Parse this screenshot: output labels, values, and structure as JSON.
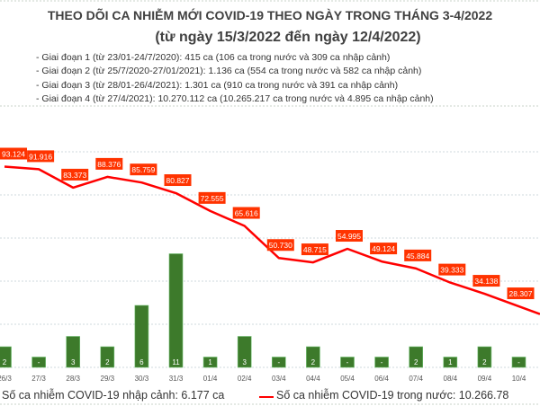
{
  "chart_data": {
    "type": "bar+line",
    "title": "THEO DÕI CA NHIỄM MỚI COVID-19 THEO NGÀY TRONG THÁNG 3-4/2022",
    "subtitle": "(từ ngày 15/3/2022 đến ngày 12/4/2022)",
    "notes": [
      "- Giai đoạn 1 (từ 23/01-24/7/2020): 415 ca (106 ca trong nước và 309 ca nhập cảnh)",
      "- Giai đoạn 2 (từ 25/7/2020-27/01/2021): 1.136 ca (554 ca trong nước và 582 ca nhập cảnh)",
      "- Giai đoạn 3 (từ 28/01-26/4/2021): 1.301 ca (910 ca trong nước và 391 ca nhập cảnh)",
      "- Giai đoạn 4 (từ 27/4/2021): 10.270.112 ca (10.265.217 ca trong nước và 4.895 ca nhập cảnh)"
    ],
    "categories": [
      "26/3",
      "27/3",
      "28/3",
      "29/3",
      "30/3",
      "31/3",
      "01/4",
      "02/4",
      "03/4",
      "04/4",
      "05/4",
      "06/4",
      "07/4",
      "08/4",
      "09/4",
      "10/4"
    ],
    "series": [
      {
        "name": "Số ca nhiễm COVID-19 nhập cảnh: 6.177 ca",
        "type": "bar",
        "color": "#3d7a2b",
        "values": [
          2,
          0,
          3,
          2,
          6,
          11,
          1,
          3,
          0,
          2,
          0,
          0,
          2,
          1,
          2,
          0
        ],
        "labels": [
          "2",
          "-",
          "3",
          "2",
          "6",
          "11",
          "1",
          "3",
          "-",
          "2",
          "-",
          "-",
          "2",
          "1",
          "2",
          "-"
        ]
      },
      {
        "name": "Số ca nhiễm COVID-19 trong nước: 10.266.78",
        "type": "line",
        "color": "#ff0000",
        "values": [
          93124,
          91916,
          83373,
          88376,
          85759,
          80827,
          72555,
          65616,
          50730,
          48715,
          54995,
          49124,
          45884,
          39333,
          34138,
          28307
        ],
        "labels": [
          "93.124",
          "91.916",
          "83.373",
          "88.376",
          "85.759",
          "80.827",
          "72.555",
          "65.616",
          "50.730",
          "48.715",
          "54.995",
          "49.124",
          "45.884",
          "39.333",
          "34.138",
          "28.307"
        ]
      }
    ],
    "line_ylim": [
      0,
      100000
    ],
    "grid": true,
    "legend_placement": "bottom",
    "label_box_color": "#ff3300"
  }
}
